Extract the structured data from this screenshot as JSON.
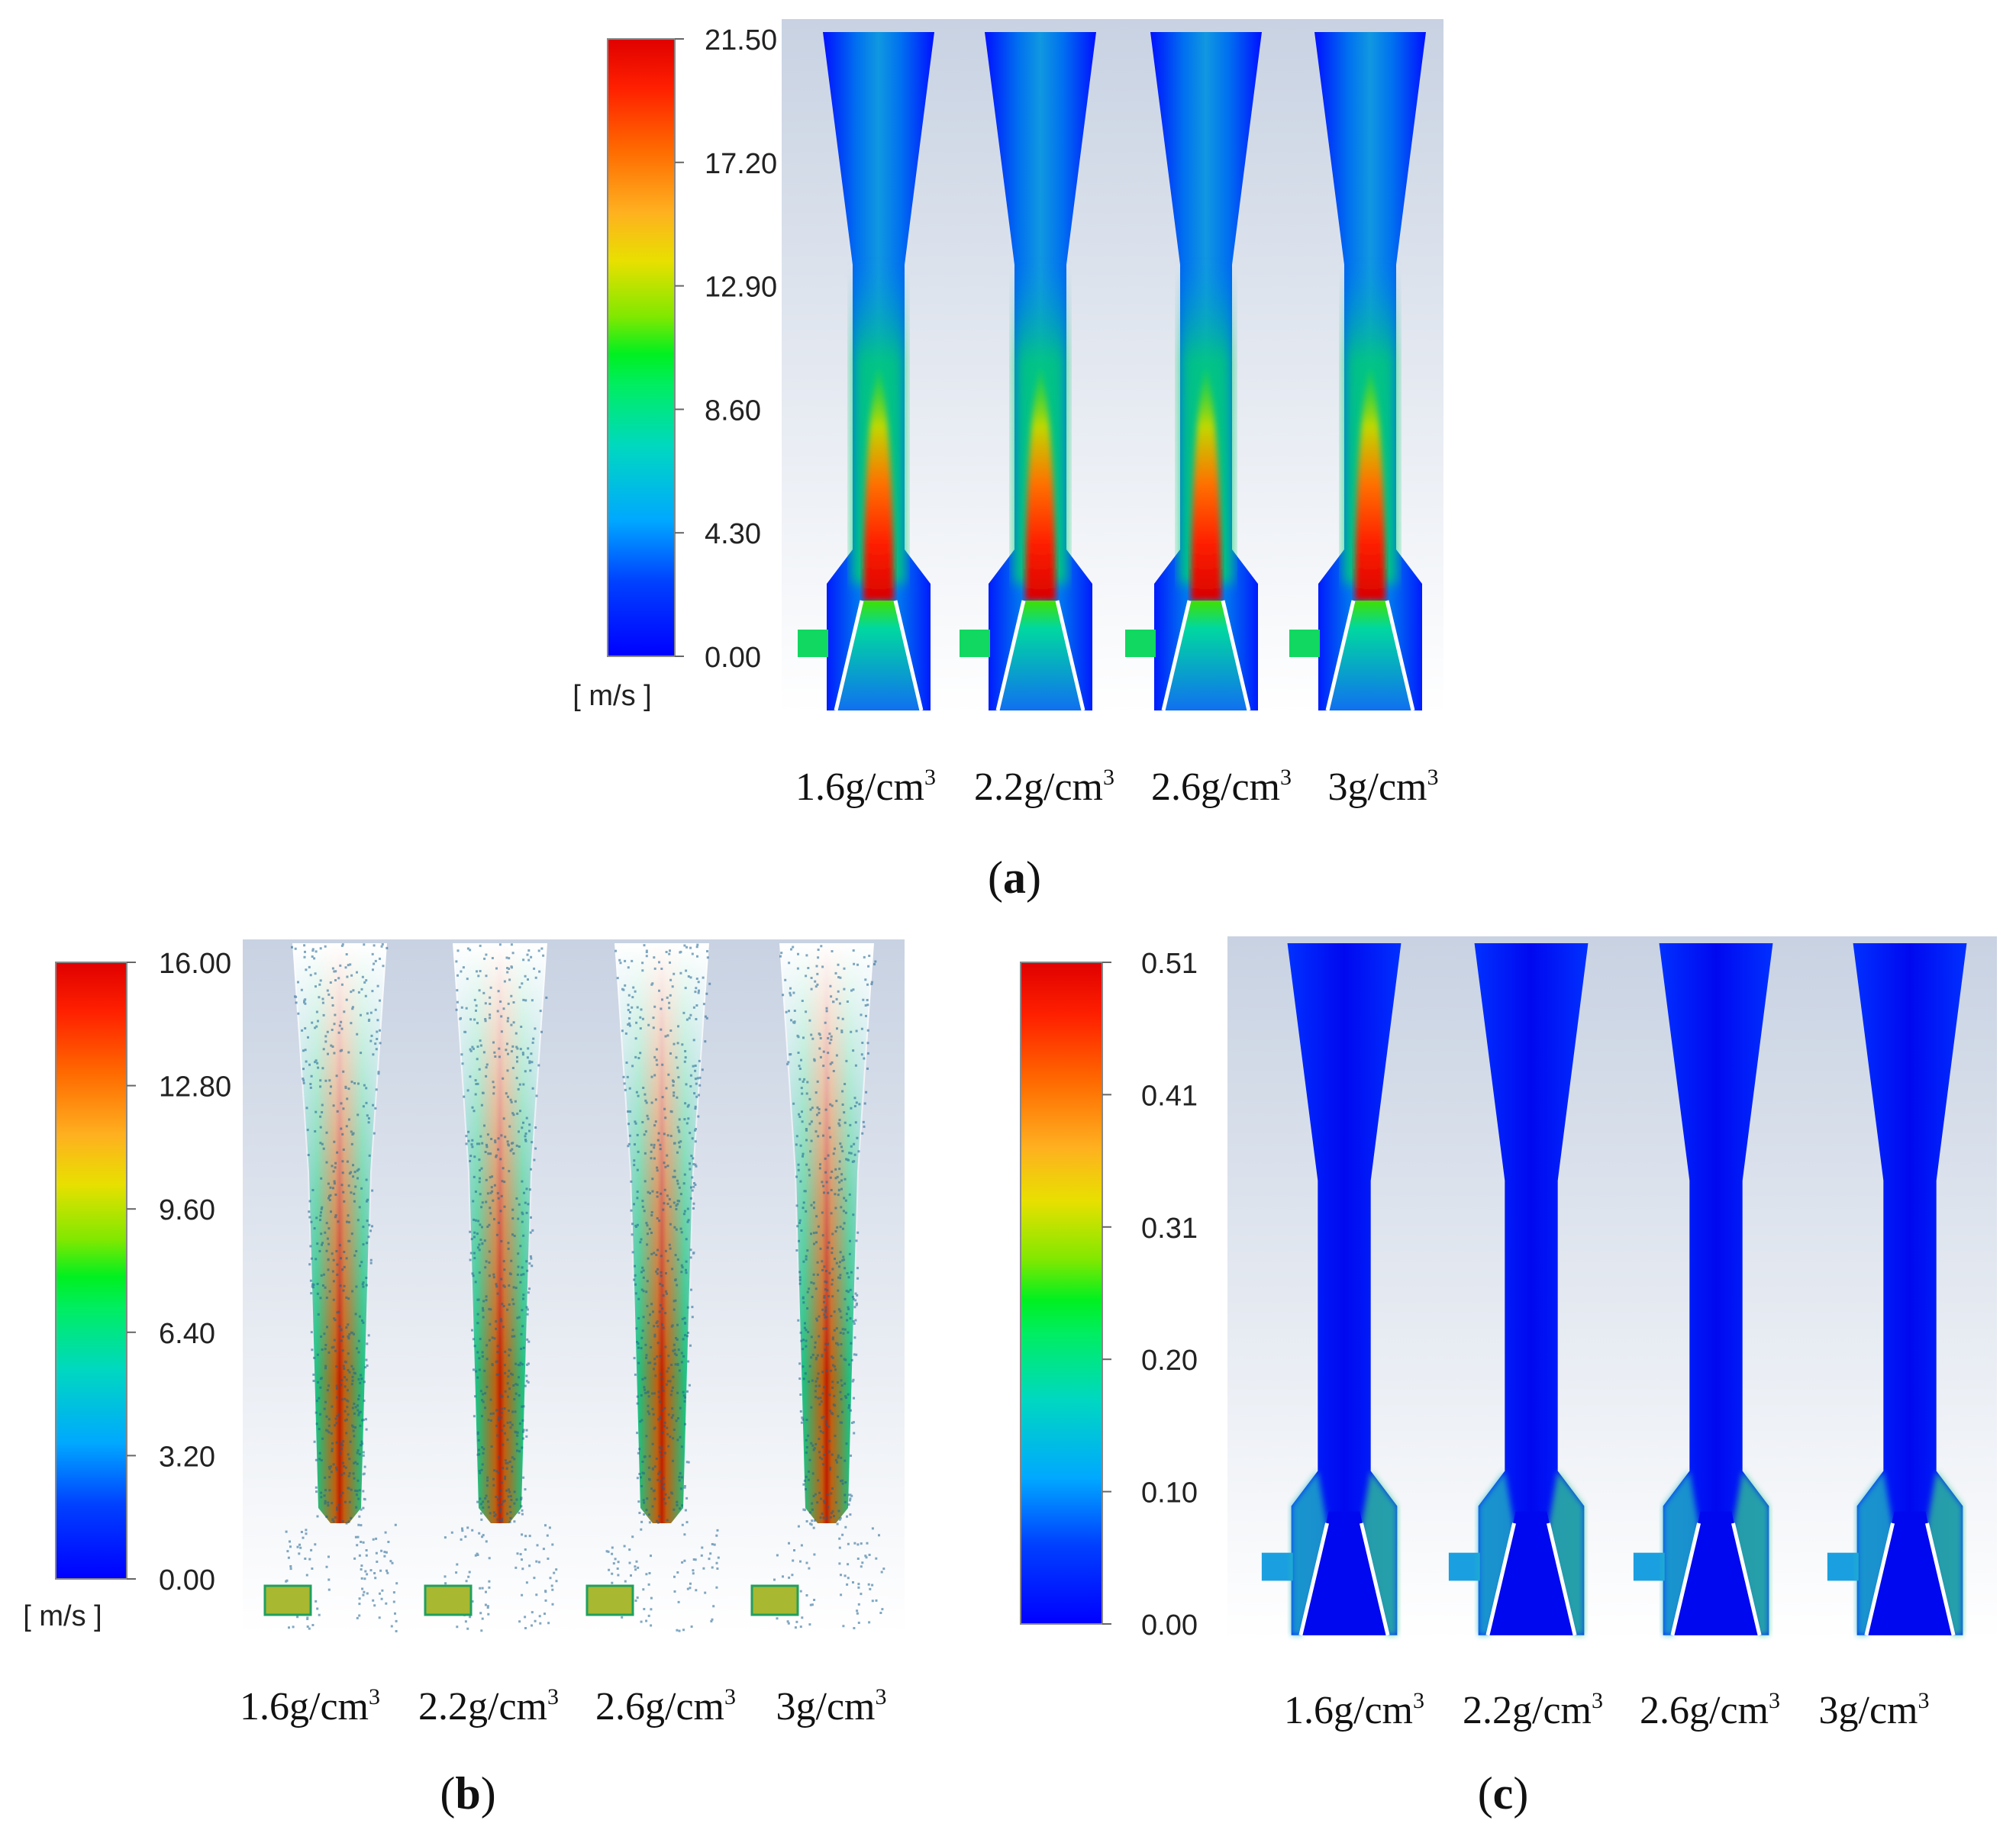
{
  "panels": [
    {
      "id": "a",
      "label": "a",
      "quantity_unit": "[ m/s ]",
      "colorbar_ticks": [
        "21.50",
        "17.20",
        "12.90",
        "8.60",
        "4.30",
        "0.00"
      ],
      "colorbar_range": [
        0,
        21.5
      ],
      "density_labels": [
        "1.6g/cm",
        "2.2g/cm",
        "2.6g/cm",
        "3g/cm"
      ],
      "density_exponent": "3",
      "view": "velocity contour"
    },
    {
      "id": "b",
      "label": "b",
      "quantity_unit": "[ m/s ]",
      "colorbar_ticks": [
        "16.00",
        "12.80",
        "9.60",
        "6.40",
        "3.20",
        "0.00"
      ],
      "colorbar_range": [
        0,
        16
      ],
      "density_labels": [
        "1.6g/cm",
        "2.2g/cm",
        "2.6g/cm",
        "3g/cm"
      ],
      "density_exponent": "3",
      "view": "particle tracks"
    },
    {
      "id": "c",
      "label": "c",
      "quantity_unit": "",
      "colorbar_ticks": [
        "0.51",
        "0.41",
        "0.31",
        "0.20",
        "0.10",
        "0.00"
      ],
      "colorbar_range": [
        0,
        0.51
      ],
      "density_labels": [
        "1.6g/cm",
        "2.2g/cm",
        "2.6g/cm",
        "3g/cm"
      ],
      "density_exponent": "3",
      "view": "volume fraction contour"
    }
  ],
  "colors": {
    "colormap": [
      "#0000ff",
      "#0050ff",
      "#00b0ff",
      "#00e0b0",
      "#00ee40",
      "#90e000",
      "#f0d000",
      "#ff8000",
      "#ff3000",
      "#e00000"
    ],
    "background_top": "#c9d3e2",
    "background_bottom": "#ffffff"
  }
}
